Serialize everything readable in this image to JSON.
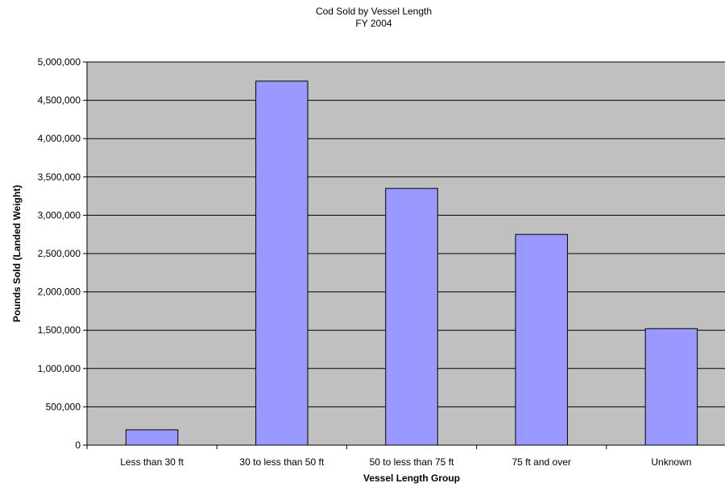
{
  "chart_data": {
    "type": "bar",
    "title": "Cod Sold by Vessel Length",
    "subtitle": "FY 2004",
    "xlabel": "Vessel Length Group",
    "ylabel": "Pounds Sold (Landed Weight)",
    "categories": [
      "Less than 30 ft",
      "30 to less than 50 ft",
      "50 to less than 75 ft",
      "75 ft and over",
      "Unknown"
    ],
    "values": [
      200000,
      4750000,
      3350000,
      2750000,
      1520000
    ],
    "ylim": [
      0,
      5000000
    ],
    "yticks": [
      "0",
      "500,000",
      "1,000,000",
      "1,500,000",
      "2,000,000",
      "2,500,000",
      "3,000,000",
      "3,500,000",
      "4,000,000",
      "4,500,000",
      "5,000,000"
    ],
    "grid": true,
    "legend": "none",
    "colors": {
      "plot_bg": "#c0c0c0",
      "bar_fill": "#9999ff",
      "bar_stroke": "#000000",
      "grid": "#000000"
    }
  }
}
